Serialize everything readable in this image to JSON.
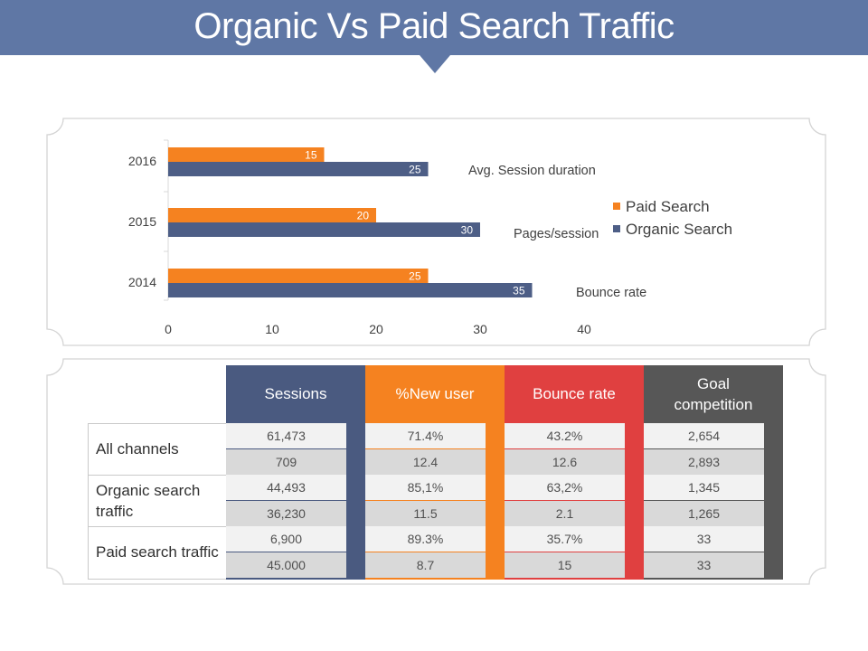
{
  "slide": {
    "title": "Organic Vs Paid Search Traffic"
  },
  "chart_data": {
    "type": "bar",
    "orientation": "horizontal",
    "categories": [
      "2016",
      "2015",
      "2014"
    ],
    "series": [
      {
        "name": "Paid Search",
        "values": [
          15,
          20,
          25
        ],
        "color": "#f58220"
      },
      {
        "name": "Organic Search",
        "values": [
          25,
          30,
          35
        ],
        "color": "#4d5e86"
      }
    ],
    "xlim": [
      0,
      40
    ],
    "xticks": [
      0,
      10,
      20,
      30,
      40
    ],
    "annotations": [
      "Avg. Session duration",
      "Pages/session",
      "Bounce rate"
    ],
    "legend_position": "right",
    "data_labels": true,
    "grid": false
  },
  "table": {
    "columns": [
      {
        "label": "Sessions",
        "color": "#4a5a80"
      },
      {
        "label": "%New user",
        "color": "#f58220"
      },
      {
        "label": "Bounce rate",
        "color": "#e04040"
      },
      {
        "label": "Goal competition",
        "color": "#575757"
      }
    ],
    "groups": [
      {
        "label": "All channels"
      },
      {
        "label": "Organic search traffic"
      },
      {
        "label": "Paid search traffic"
      }
    ],
    "rows": [
      [
        "61,473",
        "71.4%",
        "43.2%",
        "2,654"
      ],
      [
        "709",
        "12.4",
        "12.6",
        "2,893"
      ],
      [
        "44,493",
        "85,1%",
        "63,2%",
        "1,345"
      ],
      [
        "36,230",
        "11.5",
        "2.1",
        "1,265"
      ],
      [
        "6,900",
        "89.3%",
        "35.7%",
        "33"
      ],
      [
        "45.000",
        "8.7",
        "15",
        "33"
      ]
    ],
    "row_colors": [
      "#f2f2f2",
      "#d9d9d9"
    ]
  }
}
